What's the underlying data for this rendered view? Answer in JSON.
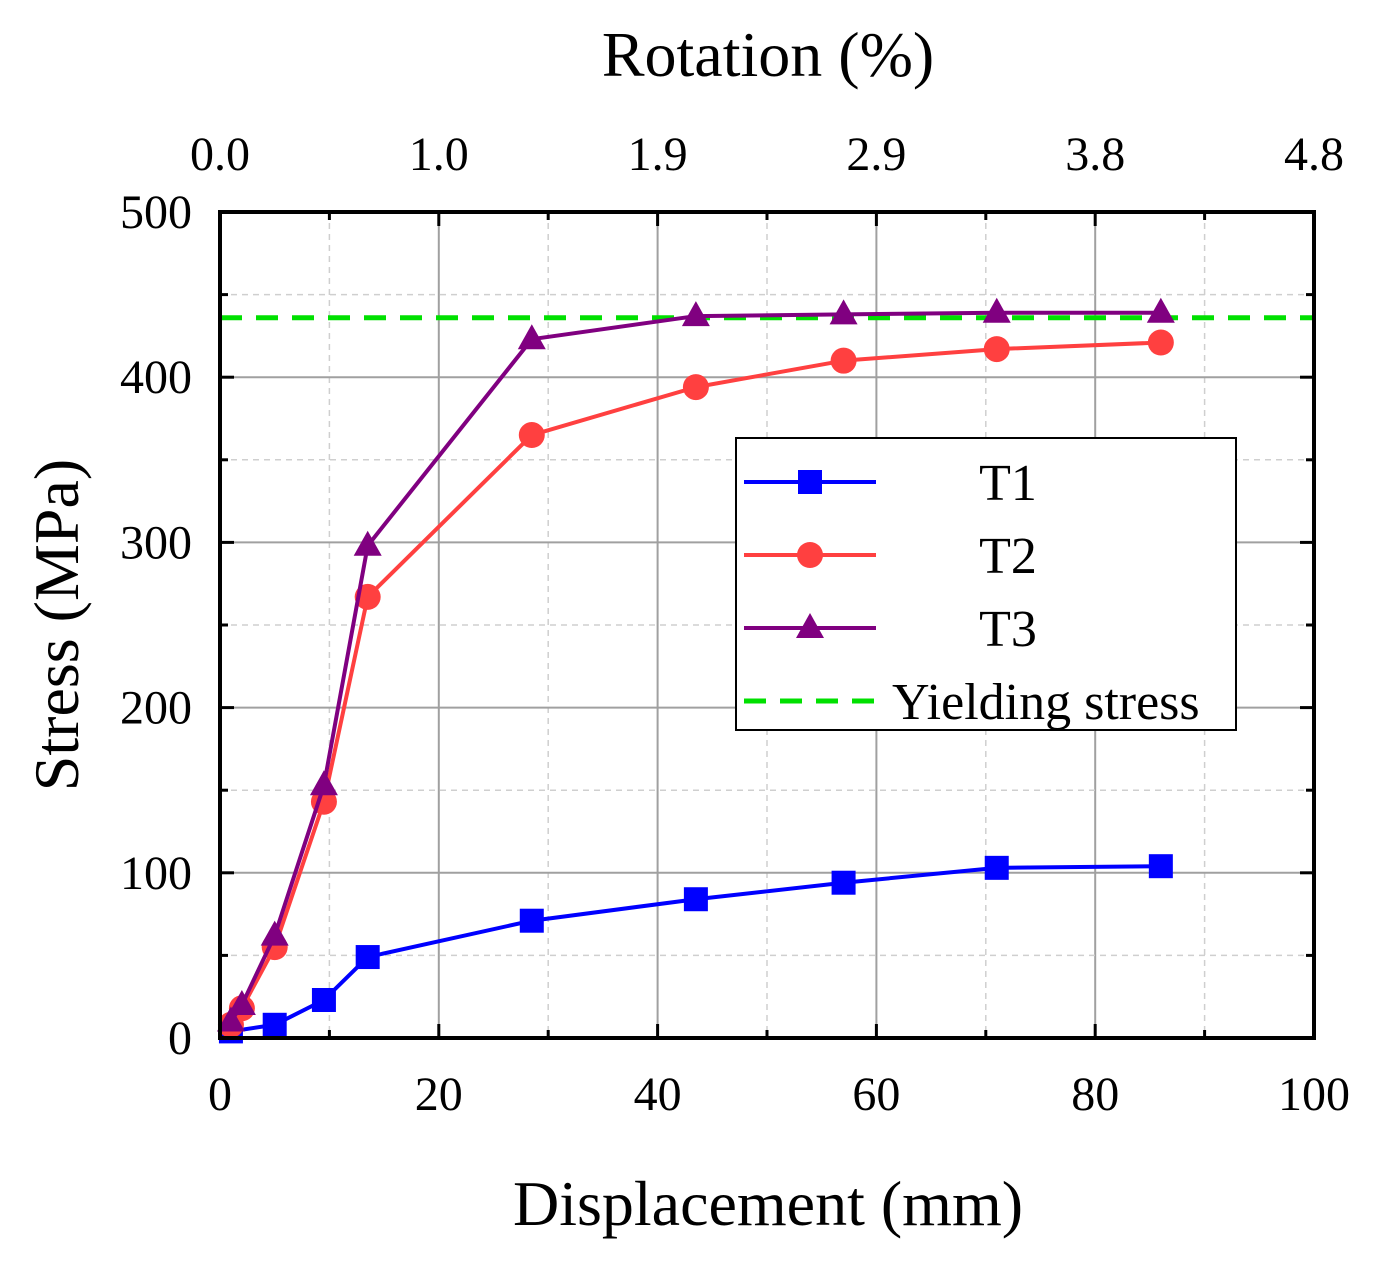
{
  "chart_data": {
    "type": "line",
    "title": "",
    "xlabel": "Displacement (mm)",
    "ylabel": "Stress (MPa)",
    "x2label": "Rotation (%)",
    "xlim": [
      0,
      100
    ],
    "ylim": [
      0,
      500
    ],
    "xticks": [
      0,
      20,
      40,
      60,
      80,
      100
    ],
    "xticklabels": [
      "0",
      "20",
      "40",
      "60",
      "80",
      "100"
    ],
    "yticks": [
      0,
      100,
      200,
      300,
      400,
      500
    ],
    "yticklabels": [
      "0",
      "100",
      "200",
      "300",
      "400",
      "500"
    ],
    "x2ticks": [
      0,
      20,
      40,
      60,
      80,
      100
    ],
    "x2ticklabels": [
      "0.0",
      "1.0",
      "1.9",
      "2.9",
      "3.8",
      "4.8"
    ],
    "grid": true,
    "legend_position": "center-right",
    "series": [
      {
        "name": "T1",
        "color": "#0000ff",
        "marker": "square",
        "x": [
          1,
          5,
          9.5,
          13.5,
          28.5,
          43.5,
          57,
          71,
          86
        ],
        "y": [
          4,
          8,
          23,
          49,
          71,
          84,
          94,
          103,
          104
        ]
      },
      {
        "name": "T2",
        "color": "#ff4040",
        "marker": "circle",
        "x": [
          1,
          2,
          5,
          9.5,
          13.5,
          28.5,
          43.5,
          57,
          71,
          86
        ],
        "y": [
          8,
          18,
          55,
          143,
          267,
          365,
          394,
          410,
          417,
          421
        ]
      },
      {
        "name": "T3",
        "color": "#800080",
        "marker": "triangle",
        "x": [
          1,
          2,
          5,
          9.5,
          13.5,
          28.5,
          43.5,
          57,
          71,
          86
        ],
        "y": [
          10,
          20,
          62,
          153,
          298,
          423,
          437,
          438,
          439,
          439
        ]
      },
      {
        "name": "Yielding stress",
        "color": "#00e000",
        "line_style": "dashed",
        "x": [
          0,
          100
        ],
        "y": [
          436,
          436
        ]
      }
    ]
  }
}
